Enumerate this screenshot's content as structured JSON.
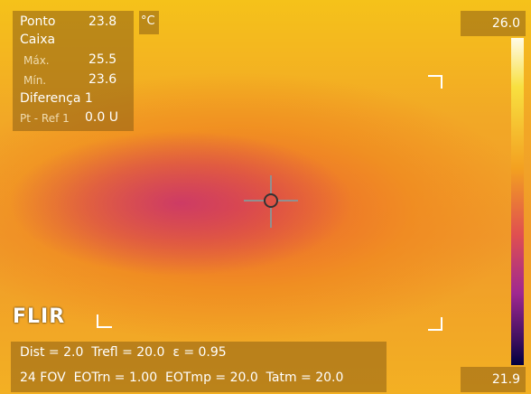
{
  "measurements": {
    "spot_label": "Ponto",
    "spot_value": "23.8",
    "unit": "°C",
    "box_label": "Caixa",
    "max_label": "Máx.",
    "max_value": "25.5",
    "min_label": "Mín.",
    "min_value": "23.6",
    "diff_label": "Diferença 1",
    "diff_ref_label": "Pt - Ref 1",
    "diff_value": "0.0 U"
  },
  "scale": {
    "max": "26.0",
    "min": "21.9"
  },
  "logo": "FLIR",
  "params": {
    "line1": "Dist = 2.0  Trefl = 20.0  ε = 0.95",
    "line2": "24 FOV  EOTrn = 1.00  EOTmp = 20.0  Tatm = 20.0"
  }
}
